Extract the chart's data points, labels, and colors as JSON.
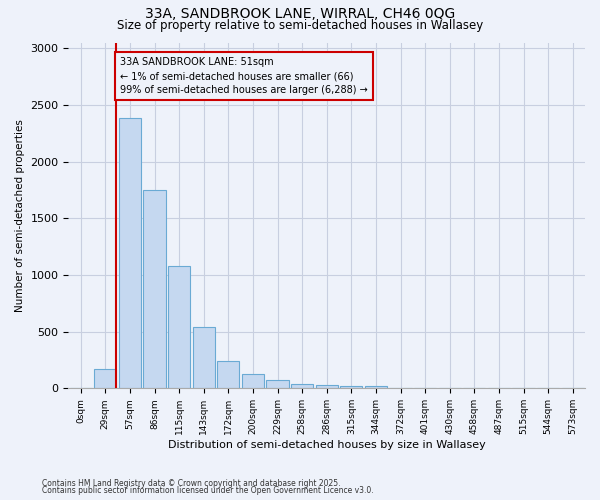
{
  "title_line1": "33A, SANDBROOK LANE, WIRRAL, CH46 0QG",
  "title_line2": "Size of property relative to semi-detached houses in Wallasey",
  "xlabel": "Distribution of semi-detached houses by size in Wallasey",
  "ylabel": "Number of semi-detached properties",
  "footnote1": "Contains HM Land Registry data © Crown copyright and database right 2025.",
  "footnote2": "Contains public sector information licensed under the Open Government Licence v3.0.",
  "annotation_title": "33A SANDBROOK LANE: 51sqm",
  "annotation_line1": "← 1% of semi-detached houses are smaller (66)",
  "annotation_line2": "99% of semi-detached houses are larger (6,288) →",
  "bar_labels": [
    "0sqm",
    "29sqm",
    "57sqm",
    "86sqm",
    "115sqm",
    "143sqm",
    "172sqm",
    "200sqm",
    "229sqm",
    "258sqm",
    "286sqm",
    "315sqm",
    "344sqm",
    "372sqm",
    "401sqm",
    "430sqm",
    "458sqm",
    "487sqm",
    "515sqm",
    "544sqm",
    "573sqm"
  ],
  "bar_values": [
    0,
    175,
    2380,
    1750,
    1075,
    540,
    240,
    130,
    70,
    40,
    30,
    20,
    20,
    0,
    0,
    0,
    0,
    0,
    0,
    0,
    0
  ],
  "bar_color": "#c5d8f0",
  "bar_edge_color": "#6aaad4",
  "vline_color": "#cc0000",
  "vline_x_bar_index": 1,
  "annotation_box_edge_color": "#cc0000",
  "background_color": "#eef2fa",
  "grid_color": "#c8cfe0",
  "ylim": [
    0,
    3050
  ],
  "yticks": [
    0,
    500,
    1000,
    1500,
    2000,
    2500,
    3000
  ],
  "fig_width": 6.0,
  "fig_height": 5.0,
  "dpi": 100
}
